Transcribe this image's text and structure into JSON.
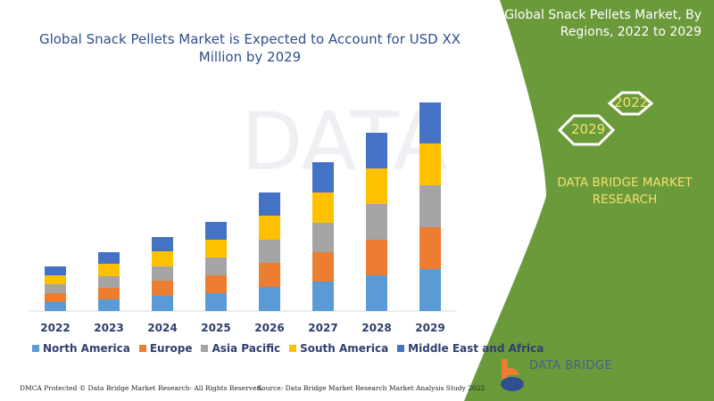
{
  "header": {
    "title": "Global Snack Pellets Market is Expected to Account for USD XX Million by 2029"
  },
  "panel": {
    "title": "Global Snack Pellets Market, By Regions, 2022 to 2029",
    "hex_top": "2022",
    "hex_bottom": "2029",
    "brand": "DATA BRIDGE MARKET RESEARCH",
    "logo_text": "DATA BRIDGE",
    "green": "#6b9a3b"
  },
  "footer": {
    "dmca": "DMCA Protected © Data Bridge Market Research- All Rights Reserved.",
    "source": "Source: Data Bridge Market Research Market Analysis Study 2022"
  },
  "chart_data": {
    "type": "bar",
    "stacked": true,
    "title": "Global Snack Pellets Market is Expected to Account for USD XX Million by 2029",
    "xlabel": "",
    "ylabel": "",
    "grid": false,
    "legend": "bottom",
    "categories": [
      "2022",
      "2023",
      "2024",
      "2025",
      "2026",
      "2027",
      "2028",
      "2029"
    ],
    "series": [
      {
        "name": "North America",
        "color": "#5b9bd5",
        "values": [
          10,
          13,
          17,
          20,
          27,
          33,
          40,
          47
        ]
      },
      {
        "name": "Europe",
        "color": "#ed7d31",
        "values": [
          10,
          13,
          17,
          20,
          27,
          33,
          40,
          47
        ]
      },
      {
        "name": "Asia Pacific",
        "color": "#a5a5a5",
        "values": [
          10,
          13,
          16,
          20,
          26,
          33,
          40,
          47
        ]
      },
      {
        "name": "South America",
        "color": "#ffc000",
        "values": [
          10,
          14,
          17,
          20,
          27,
          34,
          40,
          47
        ]
      },
      {
        "name": "Middle East and Africa",
        "color": "#4472c4",
        "values": [
          10,
          13,
          16,
          20,
          26,
          34,
          40,
          46
        ]
      }
    ]
  }
}
